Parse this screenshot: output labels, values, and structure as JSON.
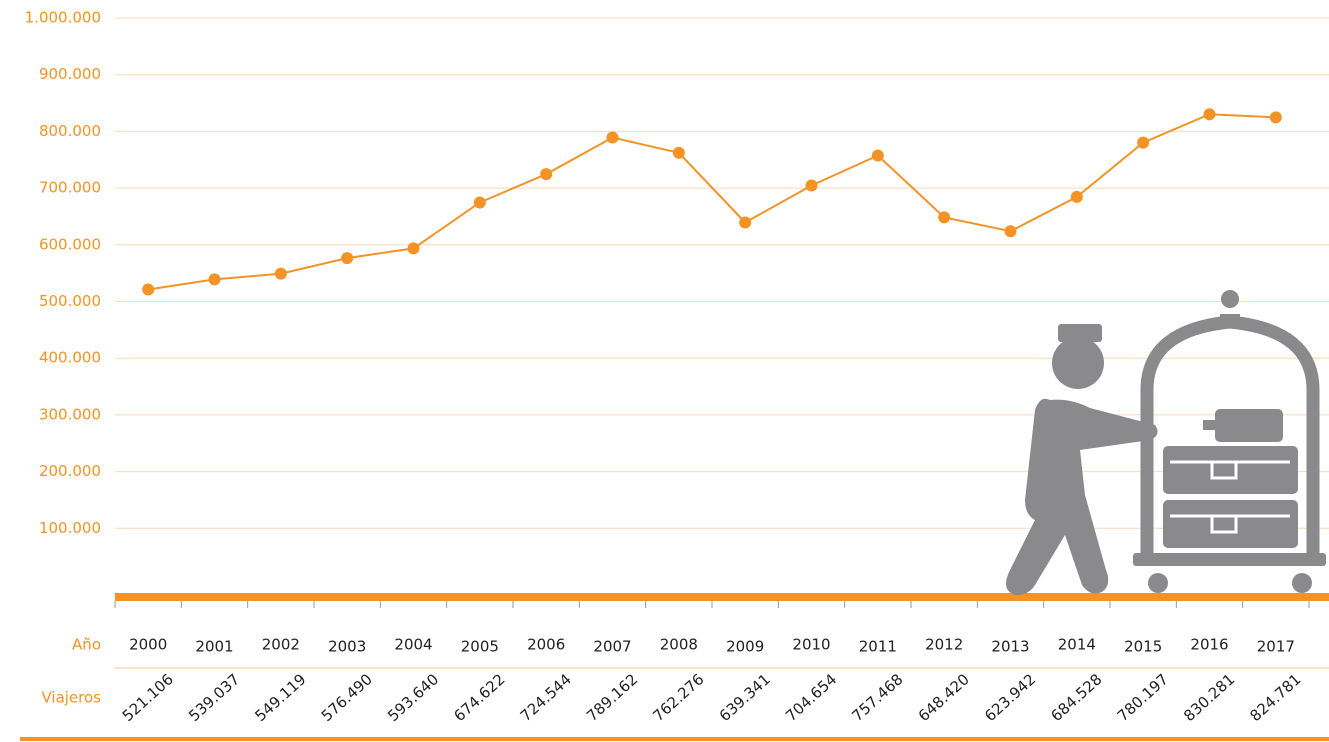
{
  "chart_data": {
    "type": "line",
    "x_label": "Año",
    "categories": [
      "2000",
      "2001",
      "2002",
      "2003",
      "2004",
      "2005",
      "2006",
      "2007",
      "2008",
      "2009",
      "2010",
      "2011",
      "2012",
      "2013",
      "2014",
      "2015",
      "2016",
      "2017"
    ],
    "series": [
      {
        "name": "Viajeros",
        "color": "#f39325",
        "values": [
          521106,
          539037,
          549119,
          576490,
          593640,
          674622,
          724544,
          789162,
          762276,
          639341,
          704654,
          757468,
          648420,
          623942,
          684528,
          780197,
          830281,
          824781
        ],
        "value_labels": [
          "521.106",
          "539.037",
          "549.119",
          "576.490",
          "593.640",
          "674.622",
          "724.544",
          "789.162",
          "762.276",
          "639.341",
          "704.654",
          "757.468",
          "648.420",
          "623.942",
          "684.528",
          "780.197",
          "830.281",
          "824.781"
        ]
      }
    ],
    "ylim": [
      0,
      1000000
    ],
    "yticks": [
      {
        "value": 100000,
        "label": "100.000"
      },
      {
        "value": 200000,
        "label": "200.000"
      },
      {
        "value": 300000,
        "label": "300.000"
      },
      {
        "value": 400000,
        "label": "400.000"
      },
      {
        "value": 500000,
        "label": "500.000"
      },
      {
        "value": 600000,
        "label": "600.000"
      },
      {
        "value": 700000,
        "label": "700.000"
      },
      {
        "value": 800000,
        "label": "800.000"
      },
      {
        "value": 900000,
        "label": "900.000"
      },
      {
        "value": 1000000,
        "label": "1.000.000"
      }
    ],
    "grid": true
  }
}
